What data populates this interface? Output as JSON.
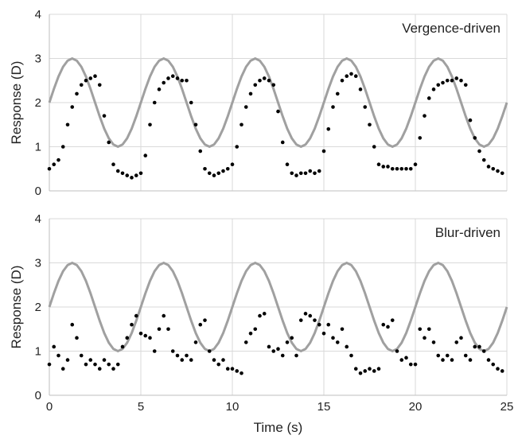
{
  "chart_data": [
    {
      "type": "scatter",
      "annotation": "Vergence-driven",
      "ylabel": "Response (D)",
      "xlim": [
        0,
        25
      ],
      "xticks": [
        0,
        5,
        10,
        15,
        20,
        25
      ],
      "show_xtick_labels": false,
      "ylim": [
        0,
        4
      ],
      "yticks": [
        0,
        1,
        2,
        3,
        4
      ],
      "grid": true,
      "series": [
        {
          "style": "line",
          "color": "#a0a0a0",
          "x": [
            0,
            0.25,
            0.5,
            0.75,
            1,
            1.25,
            1.5,
            1.75,
            2,
            2.25,
            2.5,
            2.75,
            3,
            3.25,
            3.5,
            3.75,
            4,
            4.25,
            4.5,
            4.75,
            5,
            5.25,
            5.5,
            5.75,
            6,
            6.25,
            6.5,
            6.75,
            7,
            7.25,
            7.5,
            7.75,
            8,
            8.25,
            8.5,
            8.75,
            9,
            9.25,
            9.5,
            9.75,
            10,
            10.25,
            10.5,
            10.75,
            11,
            11.25,
            11.5,
            11.75,
            12,
            12.25,
            12.5,
            12.75,
            13,
            13.25,
            13.5,
            13.75,
            14,
            14.25,
            14.5,
            14.75,
            15,
            15.25,
            15.5,
            15.75,
            16,
            16.25,
            16.5,
            16.75,
            17,
            17.25,
            17.5,
            17.75,
            18,
            18.25,
            18.5,
            18.75,
            19,
            19.25,
            19.5,
            19.75,
            20,
            20.25,
            20.5,
            20.75,
            21,
            21.25,
            21.5,
            21.75,
            22,
            22.25,
            22.5,
            22.75,
            23,
            23.25,
            23.5,
            23.75,
            24,
            24.25,
            24.5,
            24.75,
            25
          ],
          "values": [
            2,
            2.31,
            2.59,
            2.81,
            2.95,
            3,
            2.95,
            2.81,
            2.59,
            2.31,
            2,
            1.69,
            1.41,
            1.19,
            1.05,
            1,
            1.05,
            1.19,
            1.41,
            1.69,
            2,
            2.31,
            2.59,
            2.81,
            2.95,
            3,
            2.95,
            2.81,
            2.59,
            2.31,
            2,
            1.69,
            1.41,
            1.19,
            1.05,
            1,
            1.05,
            1.19,
            1.41,
            1.69,
            2,
            2.31,
            2.59,
            2.81,
            2.95,
            3,
            2.95,
            2.81,
            2.59,
            2.31,
            2,
            1.69,
            1.41,
            1.19,
            1.05,
            1,
            1.05,
            1.19,
            1.41,
            1.69,
            2,
            2.31,
            2.59,
            2.81,
            2.95,
            3,
            2.95,
            2.81,
            2.59,
            2.31,
            2,
            1.69,
            1.41,
            1.19,
            1.05,
            1,
            1.05,
            1.19,
            1.41,
            1.69,
            2,
            2.31,
            2.59,
            2.81,
            2.95,
            3,
            2.95,
            2.81,
            2.59,
            2.31,
            2,
            1.69,
            1.41,
            1.19,
            1.05,
            1,
            1.05,
            1.19,
            1.41,
            1.69,
            2
          ]
        },
        {
          "style": "points",
          "color": "#000000",
          "x": [
            0,
            0.25,
            0.5,
            0.75,
            1,
            1.25,
            1.5,
            1.75,
            2,
            2.25,
            2.5,
            2.75,
            3,
            3.25,
            3.5,
            3.75,
            4,
            4.25,
            4.5,
            4.75,
            5,
            5.25,
            5.5,
            5.75,
            6,
            6.25,
            6.5,
            6.75,
            7,
            7.25,
            7.5,
            7.75,
            8,
            8.25,
            8.5,
            8.75,
            9,
            9.25,
            9.5,
            9.75,
            10,
            10.25,
            10.5,
            10.75,
            11,
            11.25,
            11.5,
            11.75,
            12,
            12.25,
            12.5,
            12.75,
            13,
            13.25,
            13.5,
            13.75,
            14,
            14.25,
            14.5,
            14.75,
            15,
            15.25,
            15.5,
            15.75,
            16,
            16.25,
            16.5,
            16.75,
            17,
            17.25,
            17.5,
            17.75,
            18,
            18.25,
            18.5,
            18.75,
            19,
            19.25,
            19.5,
            19.75,
            20,
            20.25,
            20.5,
            20.75,
            21,
            21.25,
            21.5,
            21.75,
            22,
            22.25,
            22.5,
            22.75,
            23,
            23.25,
            23.5,
            23.75,
            24,
            24.25,
            24.5,
            24.75
          ],
          "values": [
            0.5,
            0.6,
            0.7,
            1.0,
            1.5,
            1.9,
            2.2,
            2.4,
            2.5,
            2.55,
            2.6,
            2.4,
            1.7,
            1.1,
            0.6,
            0.45,
            0.4,
            0.35,
            0.3,
            0.35,
            0.4,
            0.8,
            1.5,
            2.0,
            2.3,
            2.45,
            2.55,
            2.6,
            2.55,
            2.5,
            2.5,
            2.0,
            1.5,
            0.9,
            0.5,
            0.4,
            0.35,
            0.4,
            0.45,
            0.5,
            0.6,
            1.0,
            1.5,
            1.9,
            2.2,
            2.4,
            2.5,
            2.55,
            2.5,
            2.4,
            1.8,
            1.1,
            0.6,
            0.4,
            0.35,
            0.4,
            0.4,
            0.45,
            0.4,
            0.45,
            0.9,
            1.4,
            1.9,
            2.2,
            2.5,
            2.6,
            2.65,
            2.6,
            2.3,
            1.9,
            1.5,
            1.0,
            0.6,
            0.55,
            0.55,
            0.5,
            0.5,
            0.5,
            0.5,
            0.5,
            0.6,
            1.2,
            1.7,
            2.1,
            2.3,
            2.4,
            2.45,
            2.5,
            2.5,
            2.55,
            2.5,
            2.4,
            1.6,
            1.2,
            0.9,
            0.7,
            0.55,
            0.5,
            0.45,
            0.4
          ]
        }
      ]
    },
    {
      "type": "scatter",
      "annotation": "Blur-driven",
      "ylabel": "Response (D)",
      "xlabel": "Time (s)",
      "xlim": [
        0,
        25
      ],
      "xticks": [
        0,
        5,
        10,
        15,
        20,
        25
      ],
      "show_xtick_labels": true,
      "ylim": [
        0,
        4
      ],
      "yticks": [
        0,
        1,
        2,
        3,
        4
      ],
      "grid": true,
      "series": [
        {
          "style": "line",
          "color": "#a0a0a0",
          "x": [
            0,
            0.25,
            0.5,
            0.75,
            1,
            1.25,
            1.5,
            1.75,
            2,
            2.25,
            2.5,
            2.75,
            3,
            3.25,
            3.5,
            3.75,
            4,
            4.25,
            4.5,
            4.75,
            5,
            5.25,
            5.5,
            5.75,
            6,
            6.25,
            6.5,
            6.75,
            7,
            7.25,
            7.5,
            7.75,
            8,
            8.25,
            8.5,
            8.75,
            9,
            9.25,
            9.5,
            9.75,
            10,
            10.25,
            10.5,
            10.75,
            11,
            11.25,
            11.5,
            11.75,
            12,
            12.25,
            12.5,
            12.75,
            13,
            13.25,
            13.5,
            13.75,
            14,
            14.25,
            14.5,
            14.75,
            15,
            15.25,
            15.5,
            15.75,
            16,
            16.25,
            16.5,
            16.75,
            17,
            17.25,
            17.5,
            17.75,
            18,
            18.25,
            18.5,
            18.75,
            19,
            19.25,
            19.5,
            19.75,
            20,
            20.25,
            20.5,
            20.75,
            21,
            21.25,
            21.5,
            21.75,
            22,
            22.25,
            22.5,
            22.75,
            23,
            23.25,
            23.5,
            23.75,
            24,
            24.25,
            24.5,
            24.75,
            25
          ],
          "values": [
            2,
            2.31,
            2.59,
            2.81,
            2.95,
            3,
            2.95,
            2.81,
            2.59,
            2.31,
            2,
            1.69,
            1.41,
            1.19,
            1.05,
            1,
            1.05,
            1.19,
            1.41,
            1.69,
            2,
            2.31,
            2.59,
            2.81,
            2.95,
            3,
            2.95,
            2.81,
            2.59,
            2.31,
            2,
            1.69,
            1.41,
            1.19,
            1.05,
            1,
            1.05,
            1.19,
            1.41,
            1.69,
            2,
            2.31,
            2.59,
            2.81,
            2.95,
            3,
            2.95,
            2.81,
            2.59,
            2.31,
            2,
            1.69,
            1.41,
            1.19,
            1.05,
            1,
            1.05,
            1.19,
            1.41,
            1.69,
            2,
            2.31,
            2.59,
            2.81,
            2.95,
            3,
            2.95,
            2.81,
            2.59,
            2.31,
            2,
            1.69,
            1.41,
            1.19,
            1.05,
            1,
            1.05,
            1.19,
            1.41,
            1.69,
            2,
            2.31,
            2.59,
            2.81,
            2.95,
            3,
            2.95,
            2.81,
            2.59,
            2.31,
            2,
            1.69,
            1.41,
            1.19,
            1.05,
            1,
            1.05,
            1.19,
            1.41,
            1.69,
            2
          ]
        },
        {
          "style": "points",
          "color": "#000000",
          "x": [
            0,
            0.25,
            0.5,
            0.75,
            1,
            1.25,
            1.5,
            1.75,
            2,
            2.25,
            2.5,
            2.75,
            3,
            3.25,
            3.5,
            3.75,
            4,
            4.25,
            4.5,
            4.75,
            5,
            5.25,
            5.5,
            5.75,
            6,
            6.25,
            6.5,
            6.75,
            7,
            7.25,
            7.5,
            7.75,
            8,
            8.25,
            8.5,
            8.75,
            9,
            9.25,
            9.5,
            9.75,
            10,
            10.25,
            10.5,
            10.75,
            11,
            11.25,
            11.5,
            11.75,
            12,
            12.25,
            12.5,
            12.75,
            13,
            13.25,
            13.5,
            13.75,
            14,
            14.25,
            14.5,
            14.75,
            15,
            15.25,
            15.5,
            15.75,
            16,
            16.25,
            16.5,
            16.75,
            17,
            17.25,
            17.5,
            17.75,
            18,
            18.25,
            18.5,
            18.75,
            19,
            19.25,
            19.5,
            19.75,
            20,
            20.25,
            20.5,
            20.75,
            21,
            21.25,
            21.5,
            21.75,
            22,
            22.25,
            22.5,
            22.75,
            23,
            23.25,
            23.5,
            23.75,
            24,
            24.25,
            24.5,
            24.75
          ],
          "values": [
            0.7,
            1.1,
            0.9,
            0.6,
            0.8,
            1.6,
            1.3,
            0.9,
            0.7,
            0.8,
            0.7,
            0.6,
            0.8,
            0.7,
            0.6,
            0.7,
            1.1,
            1.3,
            1.6,
            1.8,
            1.4,
            1.35,
            1.3,
            1.0,
            1.5,
            1.8,
            1.5,
            1.0,
            0.9,
            0.8,
            0.9,
            0.8,
            1.2,
            1.6,
            1.7,
            1.0,
            0.8,
            0.7,
            0.8,
            0.6,
            0.6,
            0.55,
            0.5,
            1.2,
            1.4,
            1.5,
            1.8,
            1.85,
            1.1,
            1.0,
            1.05,
            0.9,
            1.2,
            1.3,
            0.9,
            1.7,
            1.85,
            1.8,
            1.7,
            1.6,
            1.4,
            1.6,
            1.3,
            1.2,
            1.5,
            1.1,
            0.9,
            0.6,
            0.5,
            0.55,
            0.6,
            0.55,
            0.6,
            1.6,
            1.55,
            1.7,
            1.0,
            0.8,
            0.85,
            0.7,
            0.7,
            1.5,
            1.3,
            1.5,
            1.2,
            0.9,
            0.8,
            0.9,
            0.8,
            1.2,
            1.3,
            0.9,
            0.8,
            1.1,
            1.1,
            1.0,
            0.8,
            0.7,
            0.6,
            0.55
          ]
        }
      ]
    }
  ]
}
